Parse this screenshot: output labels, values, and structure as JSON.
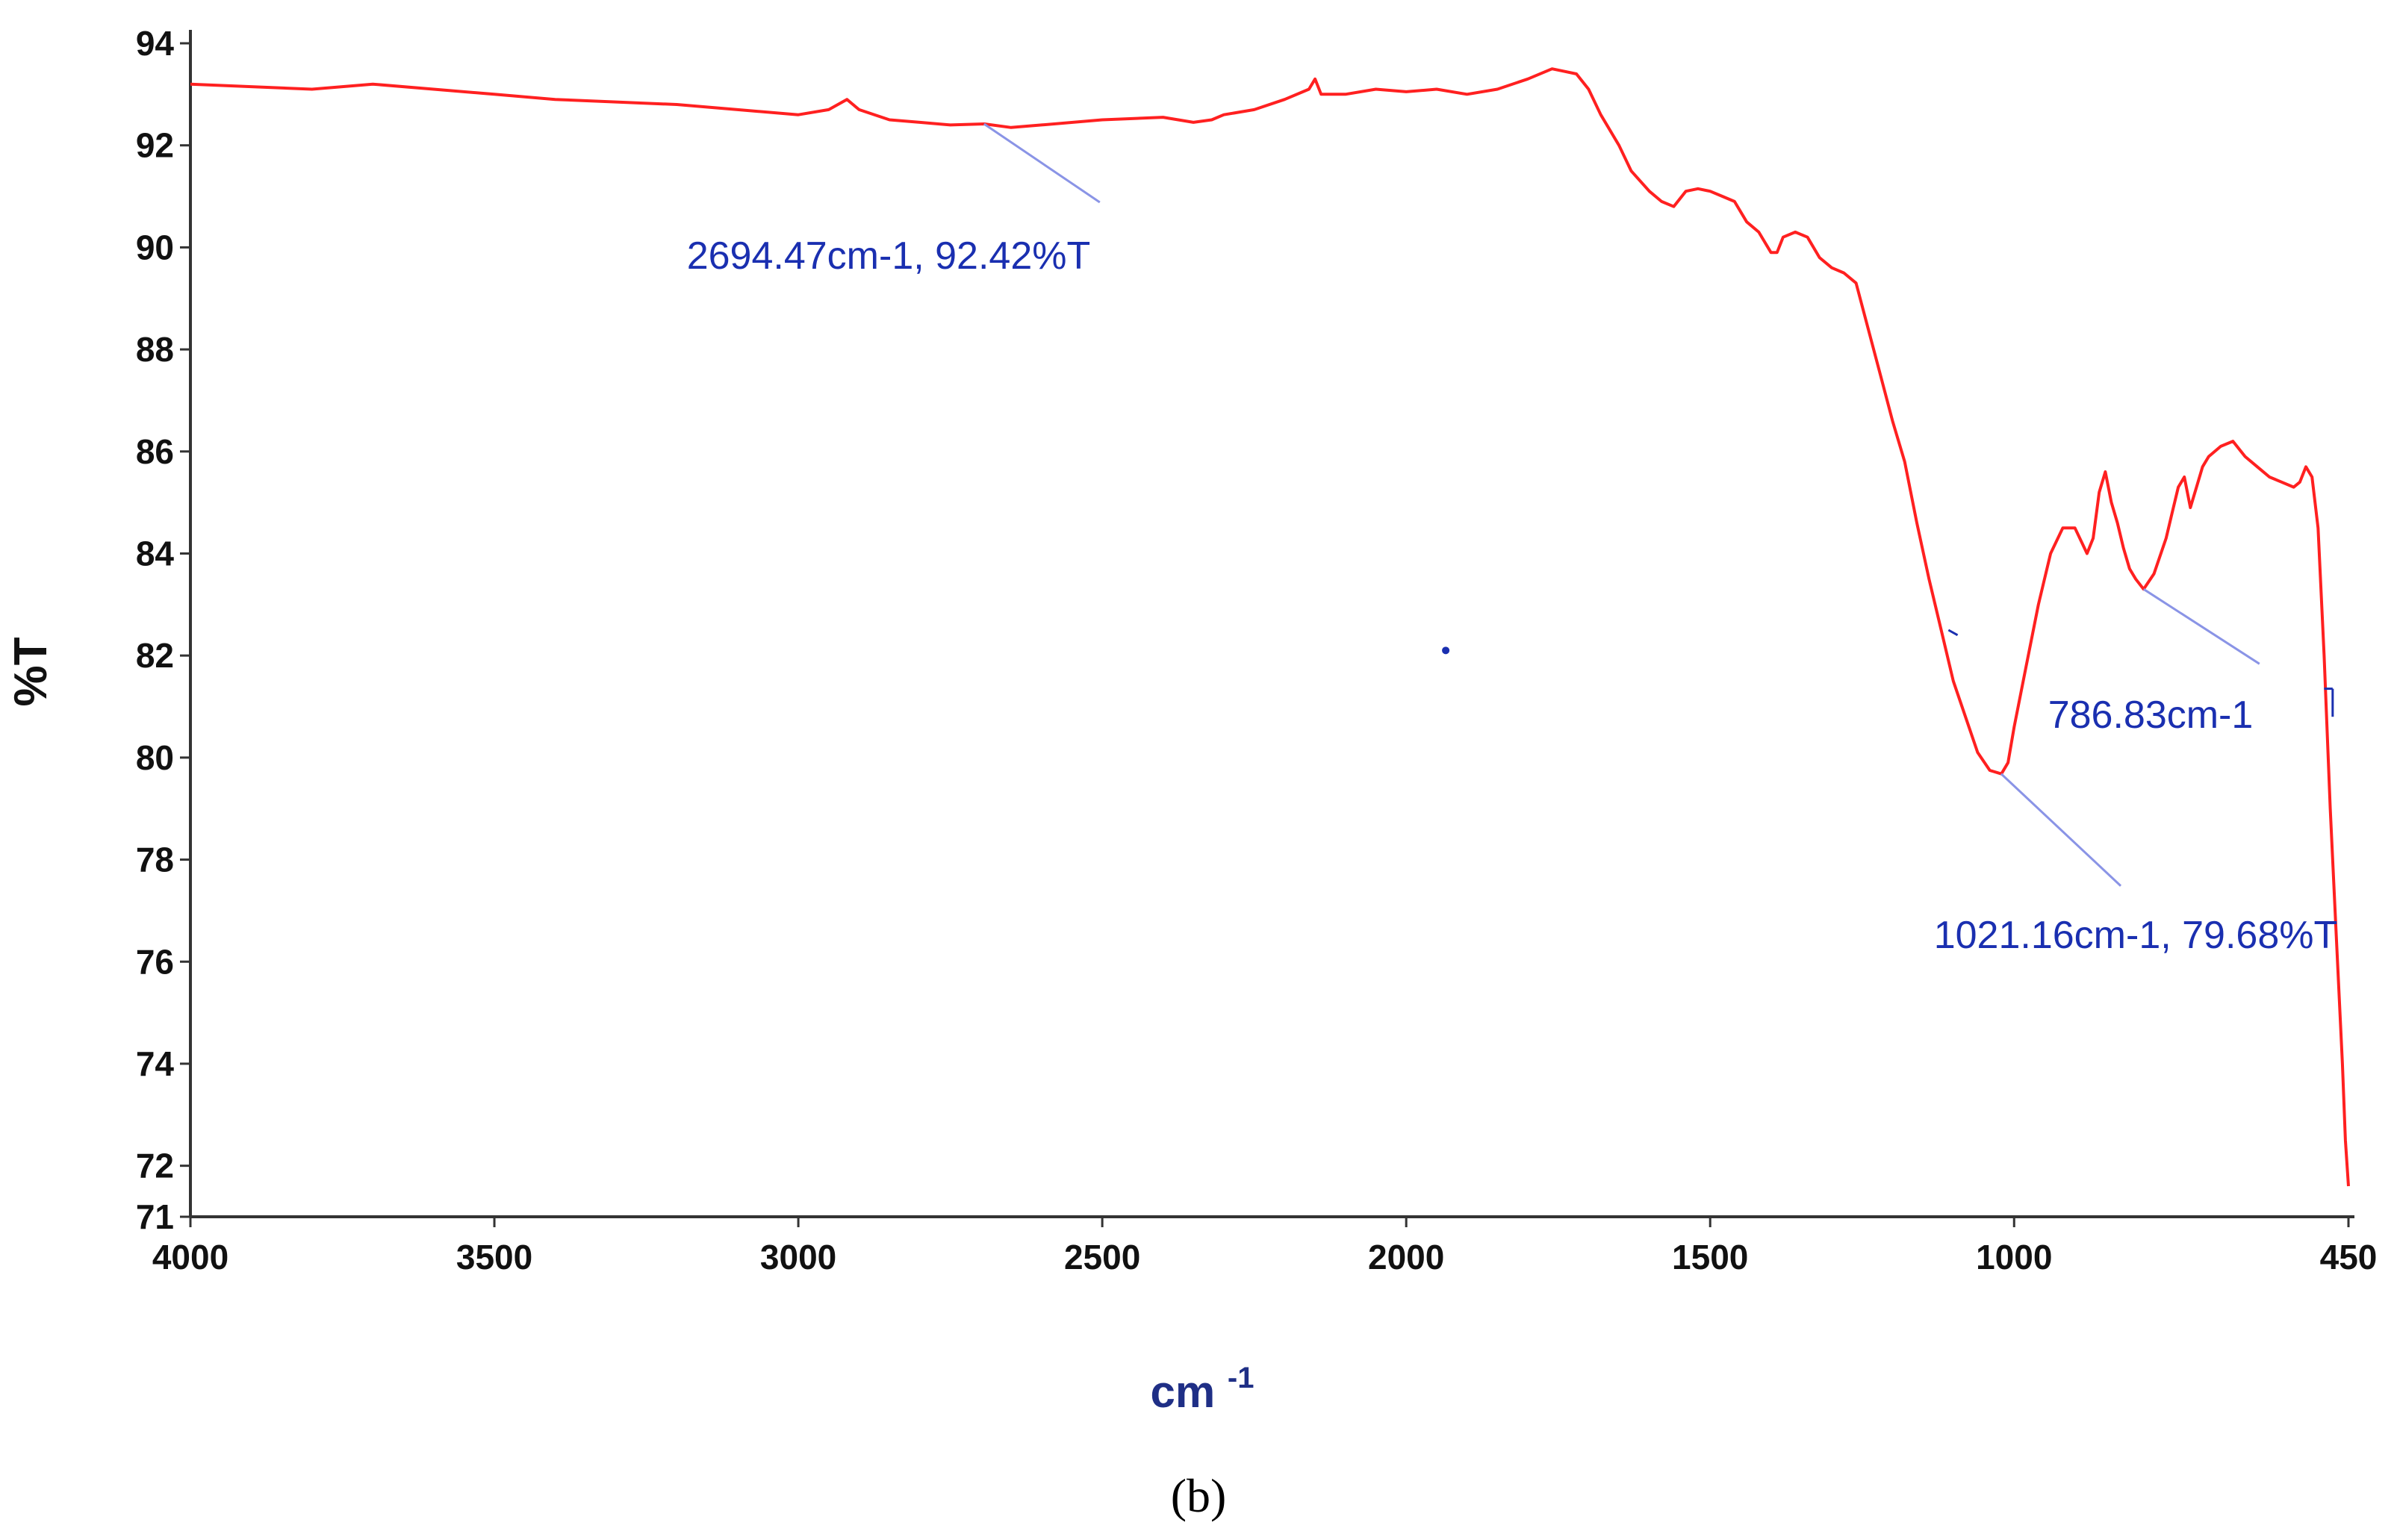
{
  "chart_data": {
    "type": "line",
    "xlabel": "cm",
    "xlabel_sup": "-1",
    "ylabel": "%T",
    "xlim": [
      4000,
      450
    ],
    "ylim": [
      71,
      94
    ],
    "x_reversed": true,
    "grid": false,
    "x_ticks": [
      4000,
      3500,
      3000,
      2500,
      2000,
      1500,
      1000,
      450
    ],
    "y_ticks": [
      71,
      72,
      74,
      76,
      78,
      80,
      82,
      84,
      86,
      88,
      90,
      92,
      94
    ],
    "line_color": "#ff2020",
    "annotation_color": "#1a2fb0",
    "series": [
      {
        "x": [
          4000,
          3900,
          3800,
          3700,
          3600,
          3500,
          3400,
          3300,
          3200,
          3100,
          3000,
          2950,
          2920,
          2900,
          2850,
          2800,
          2750,
          2694,
          2650,
          2600,
          2500,
          2400,
          2350,
          2320,
          2300,
          2250,
          2200,
          2160,
          2150,
          2140,
          2100,
          2050,
          2000,
          1950,
          1900,
          1850,
          1800,
          1760,
          1740,
          1720,
          1700,
          1680,
          1650,
          1630,
          1600,
          1580,
          1560,
          1540,
          1520,
          1500,
          1480,
          1460,
          1440,
          1420,
          1400,
          1390,
          1380,
          1360,
          1340,
          1320,
          1300,
          1280,
          1260,
          1240,
          1220,
          1200,
          1180,
          1160,
          1140,
          1120,
          1100,
          1080,
          1060,
          1040,
          1021,
          1010,
          1000,
          980,
          960,
          940,
          920,
          900,
          880,
          870,
          860,
          850,
          840,
          830,
          820,
          810,
          800,
          787,
          770,
          750,
          740,
          730,
          720,
          710,
          700,
          690,
          680,
          660,
          640,
          620,
          600,
          580,
          560,
          540,
          530,
          520,
          510,
          500,
          490,
          480,
          470,
          460,
          455,
          450
        ],
        "y": [
          93.2,
          93.15,
          93.1,
          93.2,
          93.1,
          93.0,
          92.9,
          92.85,
          92.8,
          92.7,
          92.6,
          92.7,
          92.9,
          92.7,
          92.5,
          92.45,
          92.4,
          92.42,
          92.35,
          92.4,
          92.5,
          92.55,
          92.45,
          92.5,
          92.6,
          92.7,
          92.9,
          93.1,
          93.3,
          93.0,
          93.0,
          93.1,
          93.05,
          93.1,
          93.0,
          93.1,
          93.3,
          93.5,
          93.45,
          93.4,
          93.1,
          92.6,
          92.0,
          91.5,
          91.1,
          90.9,
          90.8,
          91.1,
          91.15,
          91.1,
          91.0,
          90.9,
          90.5,
          90.3,
          89.9,
          89.9,
          90.2,
          90.3,
          90.2,
          89.8,
          89.6,
          89.5,
          89.3,
          88.4,
          87.5,
          86.6,
          85.8,
          84.6,
          83.5,
          82.5,
          81.5,
          80.8,
          80.1,
          79.75,
          79.68,
          79.9,
          80.6,
          81.8,
          83.0,
          84.0,
          84.5,
          84.5,
          84.0,
          84.3,
          85.2,
          85.6,
          85.0,
          84.6,
          84.1,
          83.7,
          83.5,
          83.3,
          83.6,
          84.3,
          84.8,
          85.3,
          85.5,
          84.9,
          85.3,
          85.7,
          85.9,
          86.1,
          86.2,
          85.9,
          85.7,
          85.5,
          85.4,
          85.3,
          85.4,
          85.7,
          85.5,
          84.5,
          82.0,
          79.0,
          76.5,
          74.0,
          72.5,
          71.6
        ]
      }
    ],
    "annotations": [
      {
        "text": "2694.47cm-1, 92.42%T",
        "x": 2694.47,
        "y": 92.42
      },
      {
        "text": "1021.16cm-1, 79.68%T",
        "x": 1021.16,
        "y": 79.68
      },
      {
        "text": "786.83cm-1",
        "x": 786.83,
        "y": 83.3
      }
    ],
    "caption": "(b)"
  }
}
